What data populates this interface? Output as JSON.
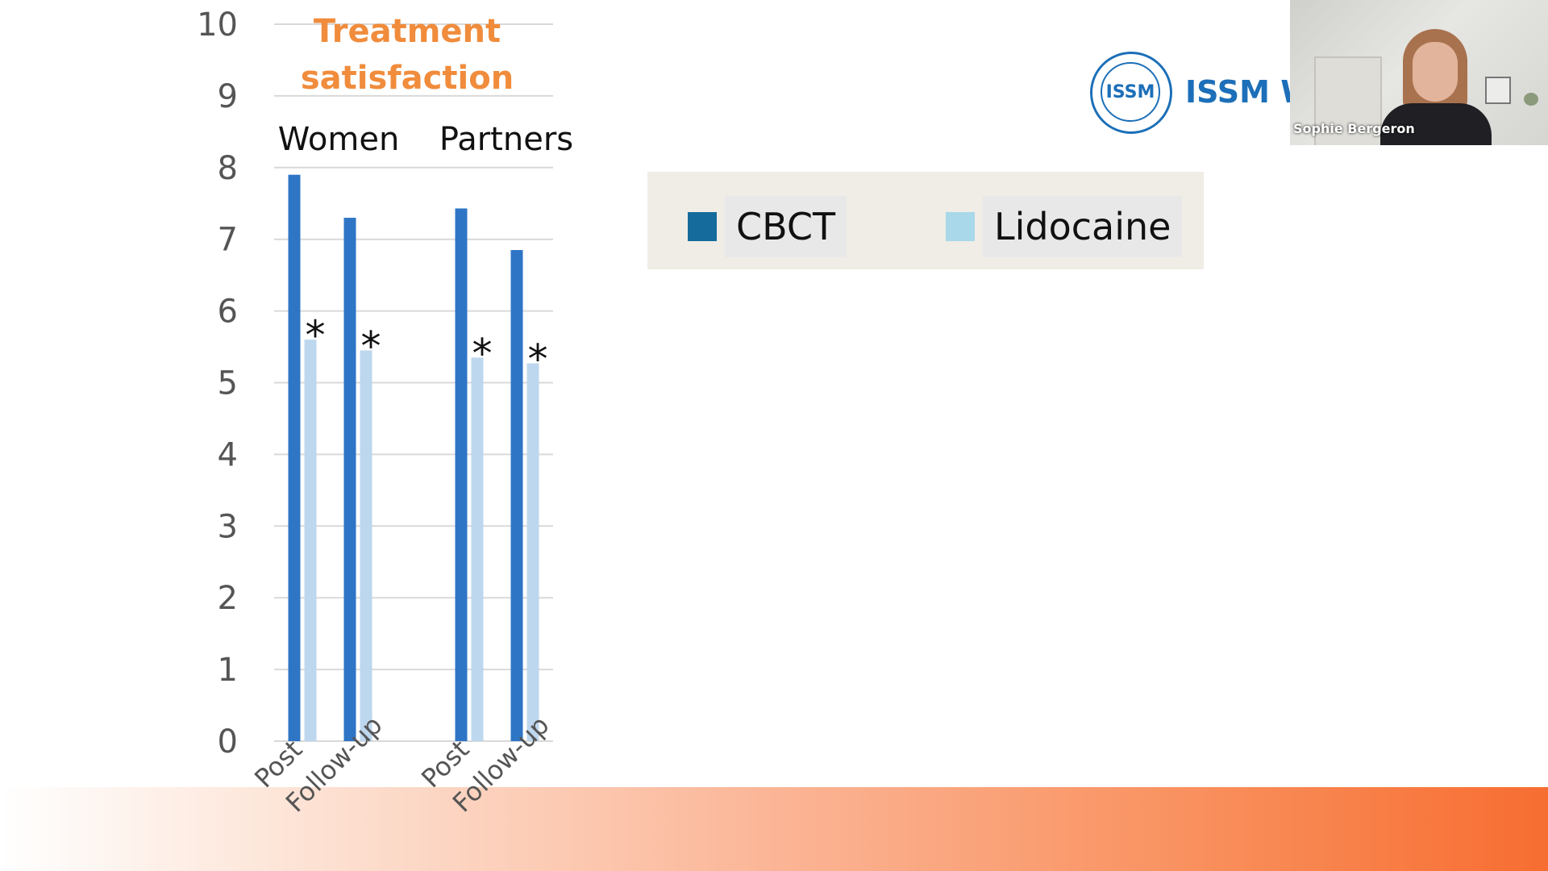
{
  "chart_data": {
    "type": "bar",
    "title": "Treatment satisfaction",
    "groups": [
      {
        "label": "Women",
        "categories": [
          "Post",
          "Follow-up"
        ]
      },
      {
        "label": "Partners",
        "categories": [
          "Post",
          "Follow-up"
        ]
      }
    ],
    "categories": [
      "Post",
      "Follow-up",
      "Post",
      "Follow-up"
    ],
    "series": [
      {
        "name": "CBCT",
        "color": "#2e75c6",
        "values": [
          7.9,
          7.3,
          7.43,
          6.85
        ]
      },
      {
        "name": "Lidocaine",
        "color": "#bdd7ee",
        "values": [
          5.6,
          5.45,
          5.35,
          5.27
        ]
      }
    ],
    "significance_marks": [
      "*",
      "*",
      "*",
      "*"
    ],
    "ylim": [
      0,
      10
    ],
    "yticks": [
      0,
      1,
      2,
      3,
      4,
      5,
      6,
      7,
      8,
      9,
      10
    ],
    "grid": true,
    "title_color": "#f08c3c"
  },
  "legend": {
    "items": [
      {
        "label": "CBCT",
        "color": "#156b9c"
      },
      {
        "label": "Lidocaine",
        "color": "#a8d8ea"
      }
    ]
  },
  "logo": {
    "badge": "ISSM",
    "text": "ISSM W"
  },
  "webcam": {
    "participant_name": "Sophie Bergeron"
  }
}
